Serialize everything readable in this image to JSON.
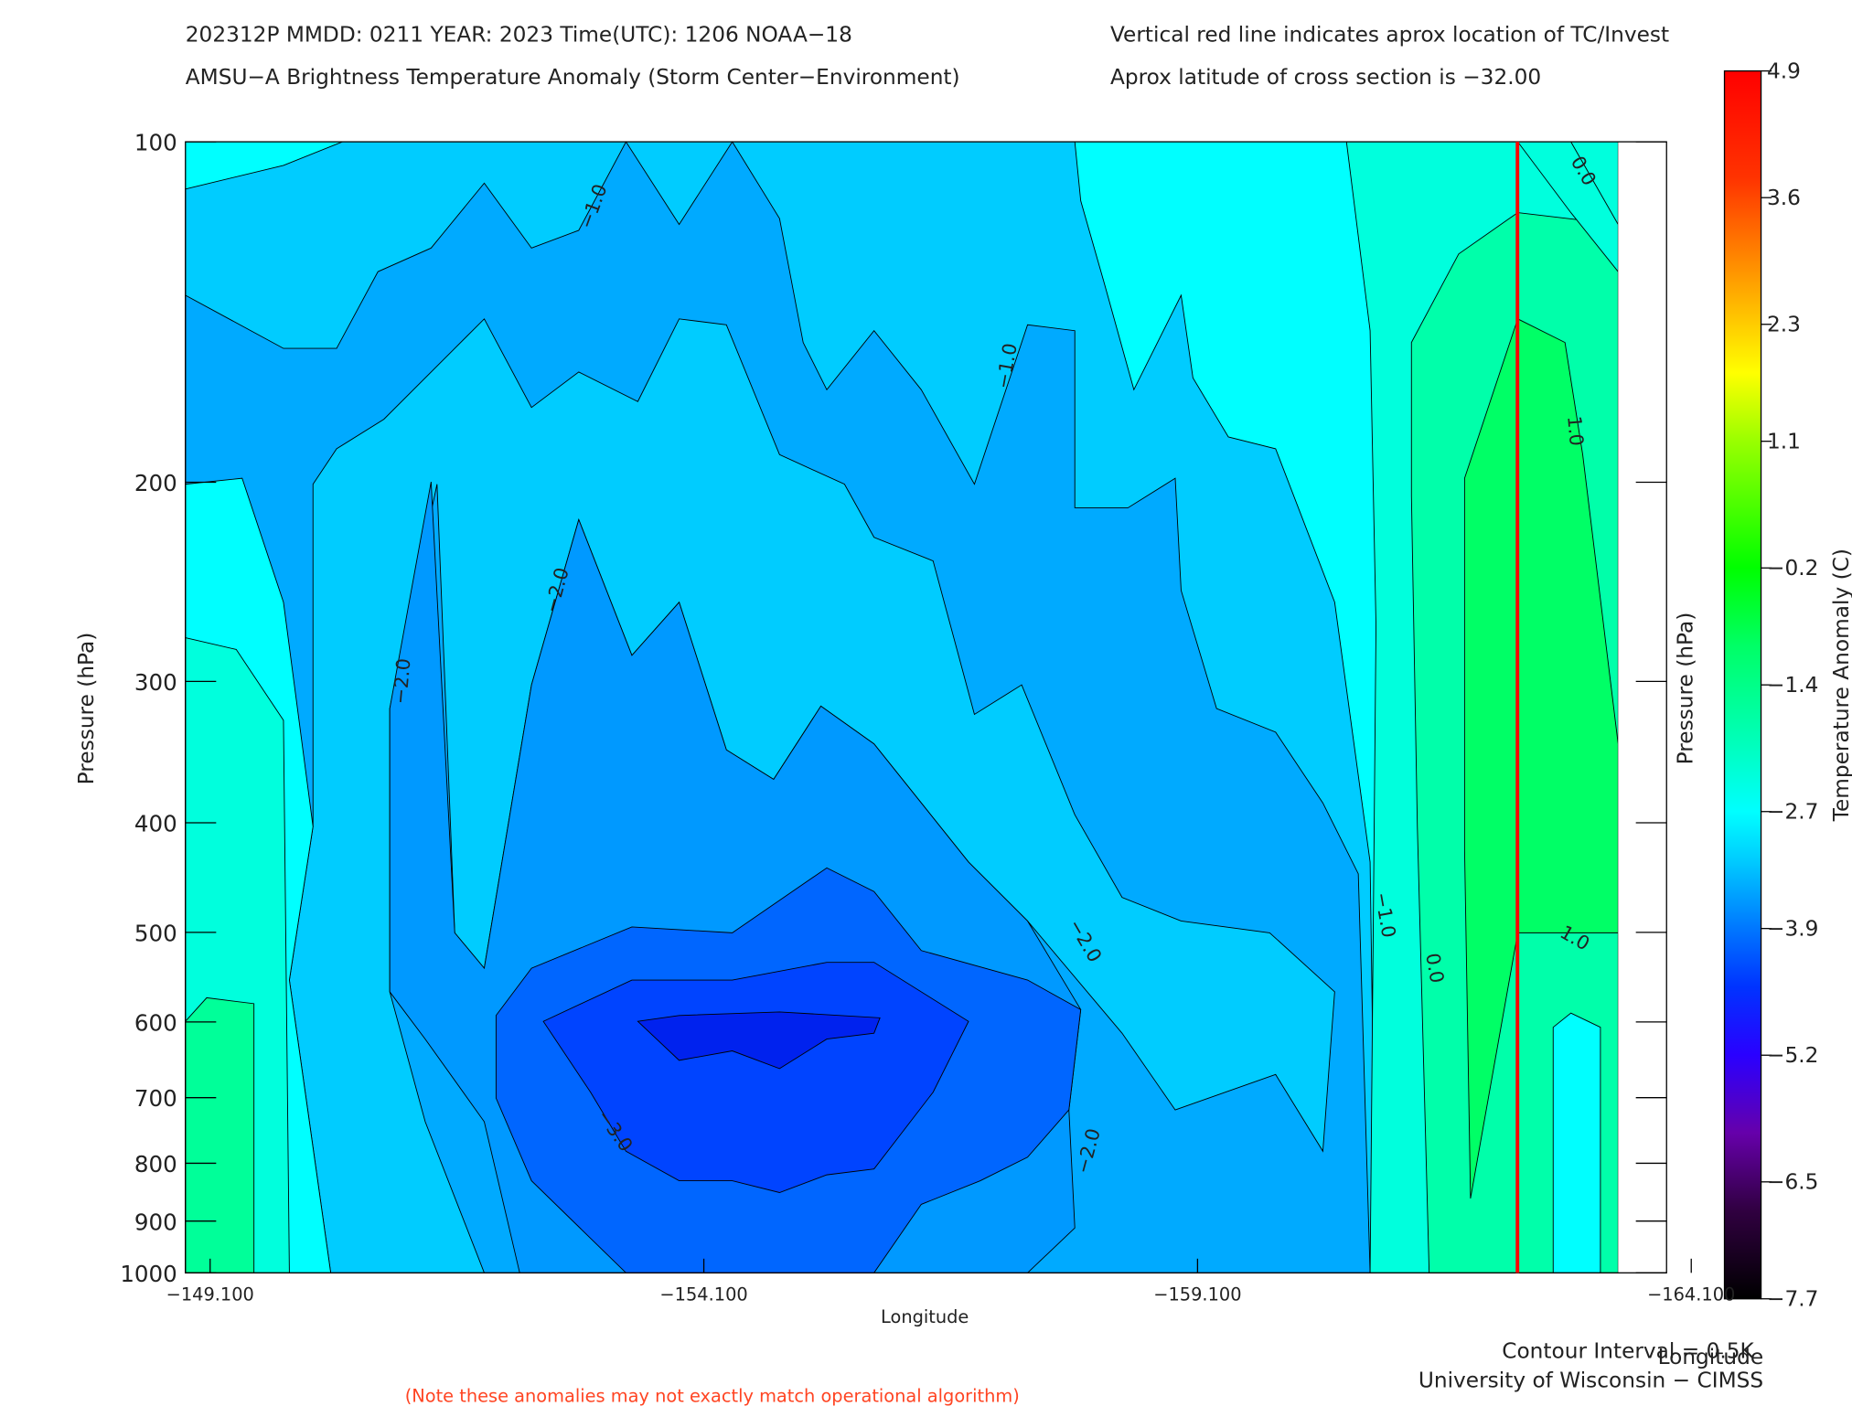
{
  "chart_data": {
    "type": "contour",
    "title": "202312P  MMDD: 0211 YEAR: 2023 Time(UTC): 1206 NOAA−18",
    "subtitle": "AMSU−A Brightness Temperature Anomaly (Storm Center−Environment)",
    "annotations": [
      "Vertical red line indicates aprox location of TC/Invest",
      "Aprox latitude of cross section is −32.00",
      "Contour Interval = 0.5K",
      "University of Wisconsin − CIMSS",
      "(Note these anomalies may not exactly match operational algorithm)"
    ],
    "x_label": "Longitude",
    "x2_label": "Longitude",
    "y_label": "Pressure (hPa)",
    "y2_label": "Pressure (hPa)",
    "xlim": [
      -148.85,
      -163.85
    ],
    "xticks": [
      {
        "value": -149.1,
        "label": "−149.100"
      },
      {
        "value": -154.1,
        "label": "−154.100"
      },
      {
        "value": -159.1,
        "label": "−159.100"
      },
      {
        "value": -164.1,
        "label": "−164.100"
      }
    ],
    "ylim": [
      1000,
      100
    ],
    "yscale": "log",
    "yticks": [
      100,
      200,
      300,
      400,
      500,
      600,
      700,
      800,
      900,
      1000
    ],
    "contour_labels": [
      "−1.0",
      "0.0",
      "−1.0",
      "1.0",
      "−2.0",
      "−2.0",
      "−1.0",
      "0.0",
      "−2.0",
      "1.0",
      "−3.0",
      "−2.0"
    ],
    "tc_line": {
      "x": -162.34,
      "color": "#ff0000"
    },
    "colorbar": {
      "label": "Temperature Anomaly (C)",
      "lim": [
        -7.7,
        4.9
      ],
      "ticks": [
        4.9,
        3.6,
        2.3,
        1.1,
        {
          "value": -0.2,
          "label": "−0.2"
        },
        {
          "value": -1.4,
          "label": "−1.4"
        },
        {
          "value": -2.7,
          "label": "−2.7"
        },
        {
          "value": -3.9,
          "label": "−3.9"
        },
        {
          "value": -5.2,
          "label": "−5.2"
        },
        {
          "value": -6.5,
          "label": "−6.5"
        },
        {
          "value": -7.7,
          "label": "−7.7"
        }
      ],
      "colormap": [
        [
          -7.7,
          "#000000"
        ],
        [
          -6.8,
          "#300040"
        ],
        [
          -6.0,
          "#6600aa"
        ],
        [
          -5.2,
          "#2a00ff"
        ],
        [
          -4.5,
          "#0033ff"
        ],
        [
          -3.9,
          "#0077ff"
        ],
        [
          -3.2,
          "#00ccff"
        ],
        [
          -2.7,
          "#00ffff"
        ],
        [
          -2.0,
          "#00ffbb"
        ],
        [
          -1.0,
          "#00ff66"
        ],
        [
          -0.2,
          "#00ff00"
        ],
        [
          1.1,
          "#99ff00"
        ],
        [
          1.8,
          "#ffff00"
        ],
        [
          2.8,
          "#ff9900"
        ],
        [
          3.8,
          "#ff3300"
        ],
        [
          4.9,
          "#ff0000"
        ]
      ]
    }
  }
}
